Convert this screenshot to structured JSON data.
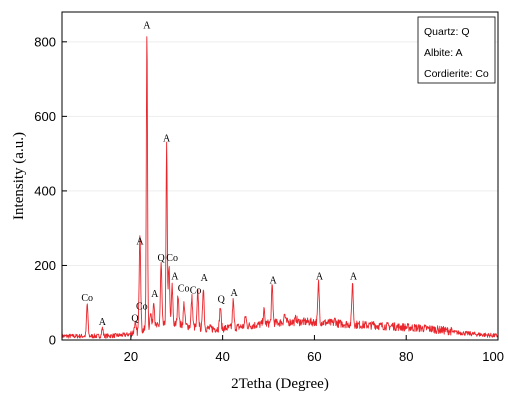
{
  "chart_data": {
    "type": "line",
    "xlabel": "2Tetha (Degree)",
    "ylabel": "Intensity (a.u.)",
    "xlim": [
      5,
      100
    ],
    "ylim": [
      0,
      880
    ],
    "xticks": [
      20,
      40,
      60,
      80,
      100
    ],
    "yticks": [
      0,
      200,
      400,
      600,
      800
    ],
    "xtick_labels": [
      "20",
      "40",
      "60",
      "80",
      "100"
    ],
    "ytick_labels": [
      "0",
      "200",
      "400",
      "600",
      "800"
    ],
    "grid": true,
    "legend_position": "top-right",
    "legend": [
      "Quartz: Q",
      "Albite: A",
      "Cordierite: Co"
    ],
    "line_color": "#e8262c",
    "series": [
      {
        "peaks": [
          {
            "x": 10.5,
            "y": 95
          },
          {
            "x": 13.8,
            "y": 30
          },
          {
            "x": 20.9,
            "y": 40
          },
          {
            "x": 21.9,
            "y": 70
          },
          {
            "x": 22.0,
            "y": 245
          },
          {
            "x": 23.5,
            "y": 825
          },
          {
            "x": 24.3,
            "y": 75
          },
          {
            "x": 25.0,
            "y": 105
          },
          {
            "x": 26.6,
            "y": 200
          },
          {
            "x": 27.8,
            "y": 520
          },
          {
            "x": 28.3,
            "y": 195
          },
          {
            "x": 29.0,
            "y": 140
          },
          {
            "x": 30.3,
            "y": 120
          },
          {
            "x": 31.6,
            "y": 95
          },
          {
            "x": 33.3,
            "y": 110
          },
          {
            "x": 34.6,
            "y": 125
          },
          {
            "x": 35.8,
            "y": 140
          },
          {
            "x": 39.5,
            "y": 85
          },
          {
            "x": 42.3,
            "y": 100
          },
          {
            "x": 45.0,
            "y": 60
          },
          {
            "x": 49.0,
            "y": 75
          },
          {
            "x": 50.8,
            "y": 140
          },
          {
            "x": 53.5,
            "y": 65
          },
          {
            "x": 56.0,
            "y": 55
          },
          {
            "x": 60.9,
            "y": 150
          },
          {
            "x": 64.5,
            "y": 50
          },
          {
            "x": 68.3,
            "y": 150
          },
          {
            "x": 73.0,
            "y": 40
          },
          {
            "x": 77.0,
            "y": 35
          }
        ]
      }
    ],
    "peak_labels": [
      {
        "text": "Co",
        "x": 10.5,
        "y": 105
      },
      {
        "text": "A",
        "x": 13.8,
        "y": 40
      },
      {
        "text": "Q",
        "x": 20.9,
        "y": 50
      },
      {
        "text": "Co",
        "x": 22.4,
        "y": 82
      },
      {
        "text": "A",
        "x": 22.0,
        "y": 256
      },
      {
        "text": "A",
        "x": 23.5,
        "y": 836
      },
      {
        "text": "A",
        "x": 25.2,
        "y": 115
      },
      {
        "text": "Q",
        "x": 26.6,
        "y": 212
      },
      {
        "text": "Co",
        "x": 29.0,
        "y": 212
      },
      {
        "text": "A",
        "x": 27.8,
        "y": 532
      },
      {
        "text": "A",
        "x": 29.6,
        "y": 162
      },
      {
        "text": "Co",
        "x": 31.5,
        "y": 130
      },
      {
        "text": "Co",
        "x": 34.1,
        "y": 125
      },
      {
        "text": "A",
        "x": 36.0,
        "y": 158
      },
      {
        "text": "Q",
        "x": 39.7,
        "y": 100
      },
      {
        "text": "A",
        "x": 42.5,
        "y": 118
      },
      {
        "text": "A",
        "x": 51.0,
        "y": 152
      },
      {
        "text": "A",
        "x": 61.1,
        "y": 162
      },
      {
        "text": "A",
        "x": 68.5,
        "y": 162
      }
    ]
  }
}
